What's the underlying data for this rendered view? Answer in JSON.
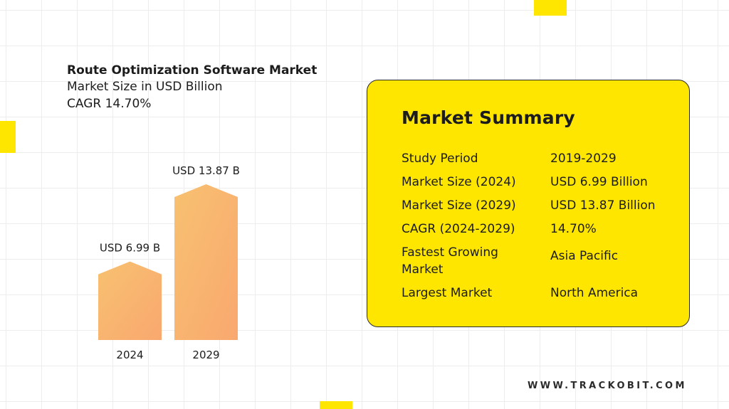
{
  "header": {
    "title": "Route Optimization Software Market",
    "subtitle": "Market Size in USD Billion",
    "cagr": "CAGR 14.70%"
  },
  "chart_data": {
    "type": "bar",
    "categories": [
      "2024",
      "2029"
    ],
    "values": [
      6.99,
      13.87
    ],
    "data_labels": [
      "USD 6.99 B",
      "USD 13.87 B"
    ],
    "title": "Route Optimization Software Market",
    "ylabel": "",
    "xlabel": "",
    "ylim": [
      0,
      13.87
    ],
    "grid": false,
    "colors": [
      "#f8c170",
      "#f9a86f"
    ]
  },
  "summary": {
    "heading": "Market Summary",
    "rows": [
      {
        "key": "Study Period",
        "value": "2019-2029"
      },
      {
        "key": "Market Size (2024)",
        "value": "USD 6.99 Billion"
      },
      {
        "key": "Market Size (2029)",
        "value": "USD 13.87 Billion"
      },
      {
        "key": "CAGR (2024-2029)",
        "value": "14.70%"
      },
      {
        "key": "Fastest Growing Market",
        "value": "Asia Pacific"
      },
      {
        "key": "Largest Market",
        "value": "North America"
      }
    ]
  },
  "footer": {
    "website": "WWW.TRACKOBIT.COM"
  },
  "colors": {
    "accent": "#ffe600",
    "bar_top": "#f8c170",
    "bar_bottom": "#f9a86f"
  }
}
